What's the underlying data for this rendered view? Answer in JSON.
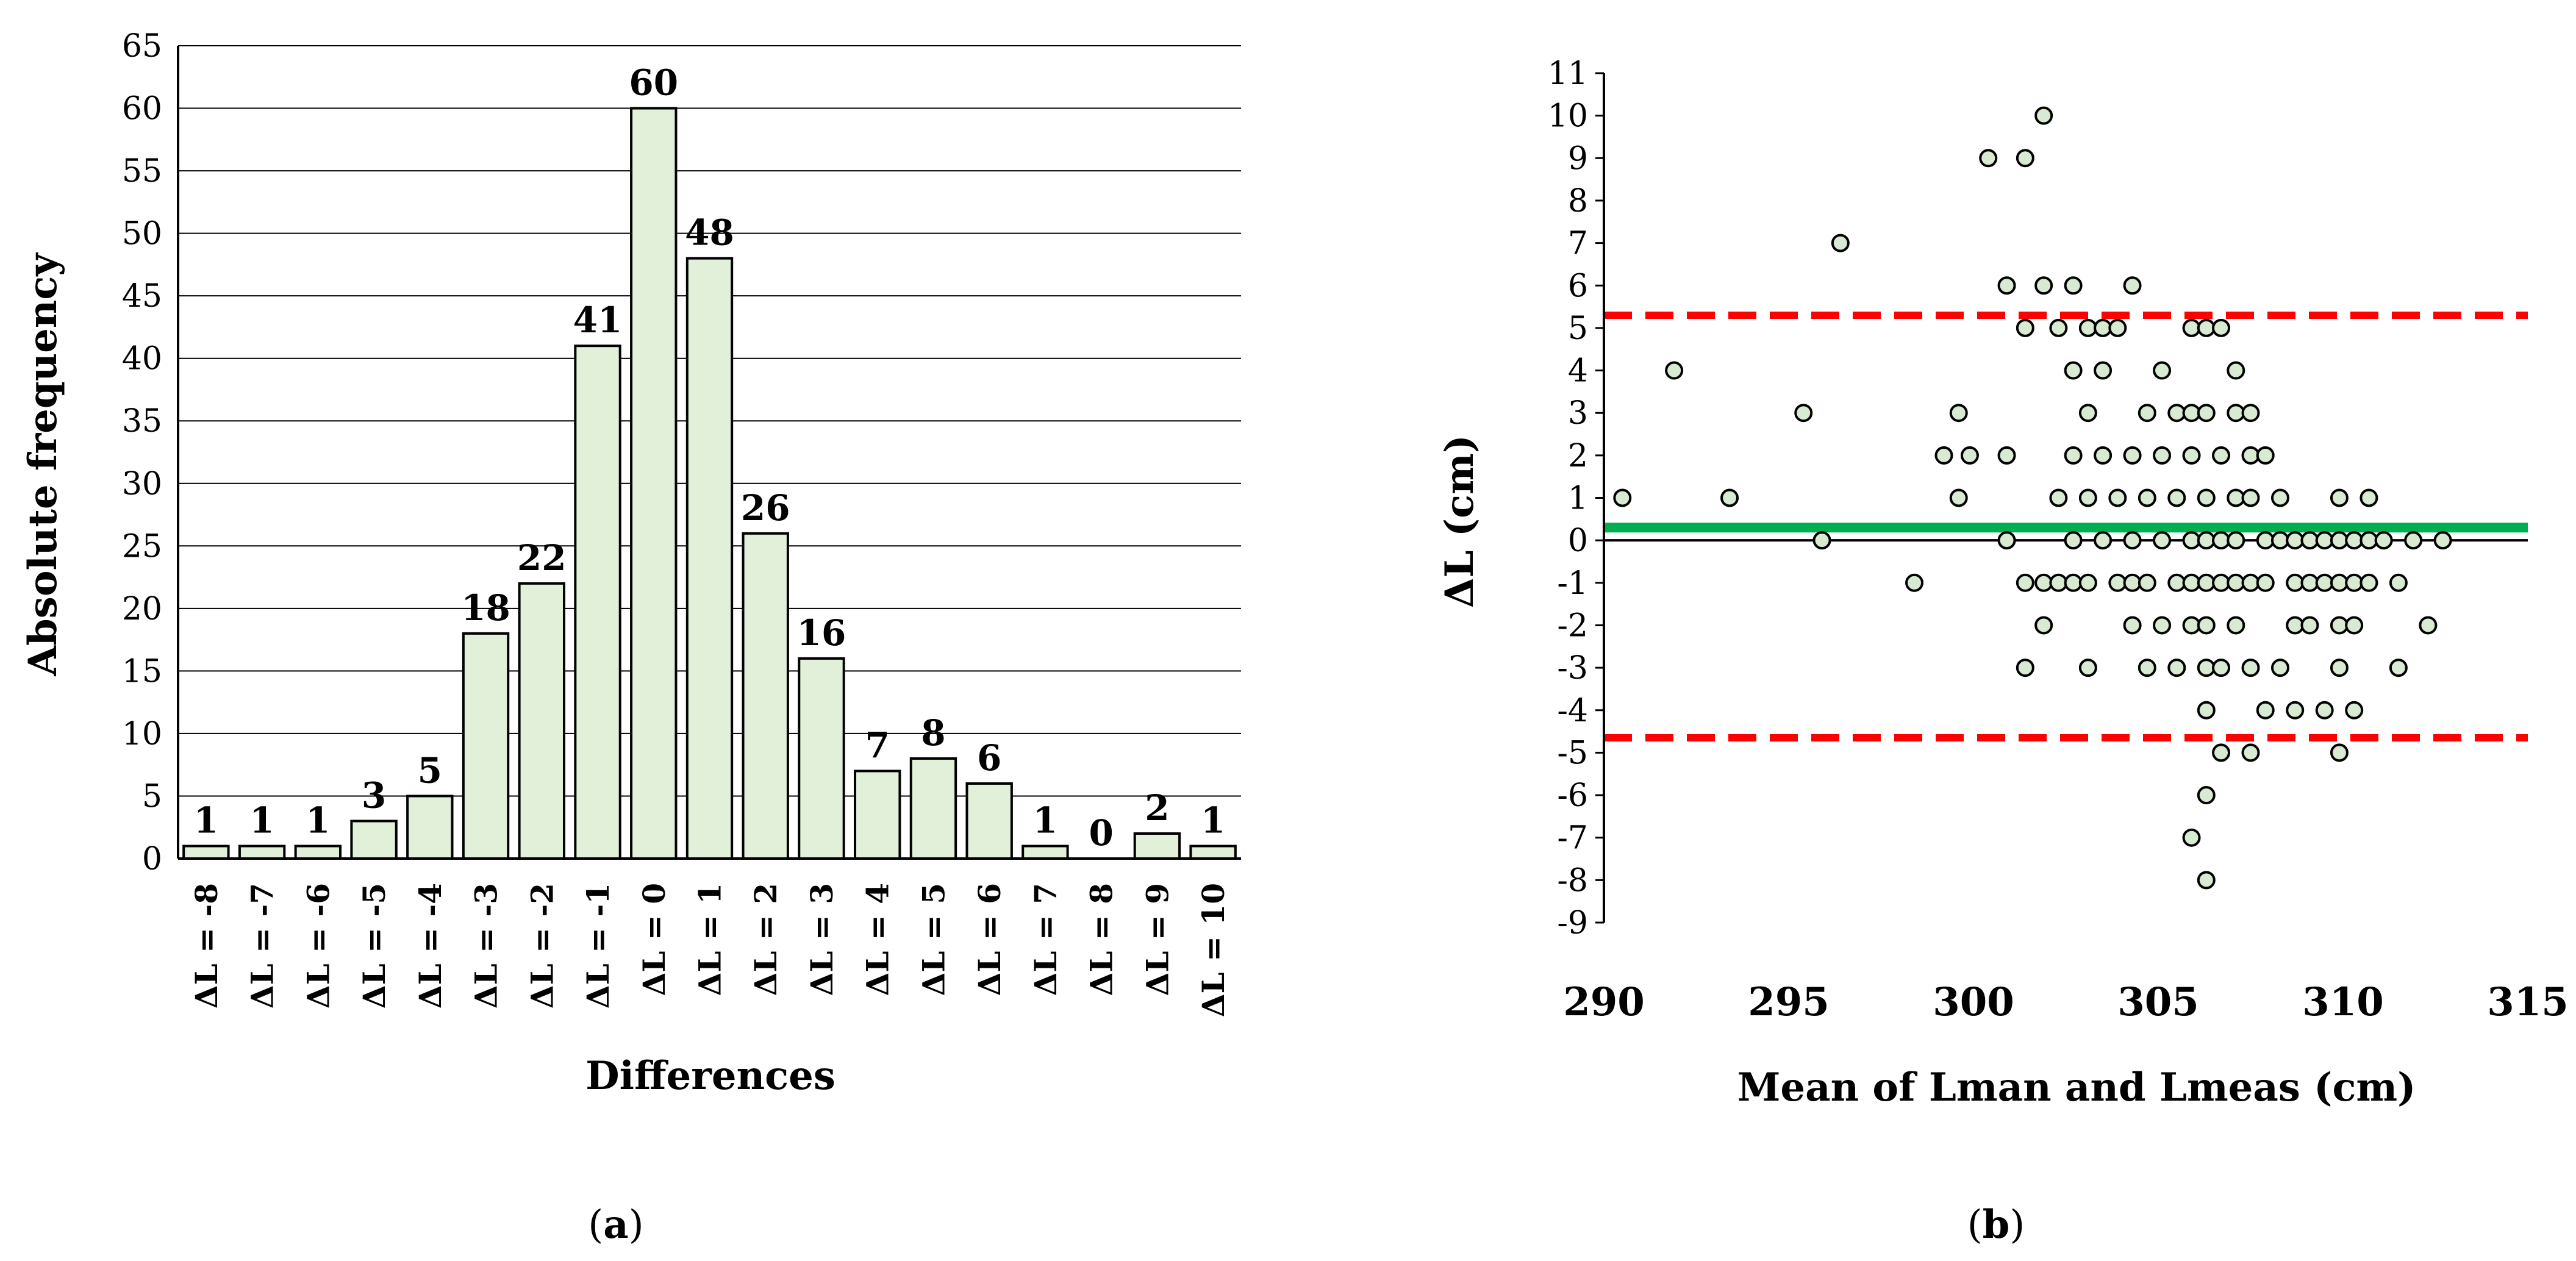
{
  "colors": {
    "bar_fill": "#e2efd9",
    "point_fill": "#d9ead3",
    "mean_line": "#00b050",
    "limit_line": "#ff0000",
    "grid": "#000000"
  },
  "chart_data": [
    {
      "type": "bar",
      "caption_letter": "a",
      "title": "",
      "xlabel": "Differences",
      "ylabel": "Absolute frequency",
      "ylim": [
        0,
        65
      ],
      "yticks": [
        "0",
        "5",
        "10",
        "15",
        "20",
        "25",
        "30",
        "35",
        "40",
        "45",
        "50",
        "55",
        "60",
        "65"
      ],
      "grid": true,
      "categories": [
        "ΔL = -8",
        "ΔL = -7",
        "ΔL = -6",
        "ΔL = -5",
        "ΔL = -4",
        "ΔL = -3",
        "ΔL = -2",
        "ΔL = -1",
        "ΔL = 0",
        "ΔL = 1",
        "ΔL = 2",
        "ΔL = 3",
        "ΔL = 4",
        "ΔL = 5",
        "ΔL = 6",
        "ΔL = 7",
        "ΔL = 8",
        "ΔL = 9",
        "ΔL = 10"
      ],
      "values": [
        1,
        1,
        1,
        3,
        5,
        18,
        22,
        41,
        60,
        48,
        26,
        16,
        7,
        8,
        6,
        1,
        0,
        2,
        1
      ]
    },
    {
      "type": "scatter",
      "caption_letter": "b",
      "title": "",
      "xlabel": "Mean of Lman and Lmeas (cm)",
      "ylabel": "ΔL  (cm)",
      "xlim": [
        290,
        315
      ],
      "ylim": [
        -9,
        11
      ],
      "xticks": [
        "290",
        "295",
        "300",
        "305",
        "310",
        "315"
      ],
      "yticks": [
        "11",
        "10",
        "9",
        "8",
        "7",
        "6",
        "5",
        "4",
        "3",
        "2",
        "1",
        "0",
        "-1",
        "-2",
        "-3",
        "-4",
        "-5",
        "-6",
        "-7",
        "-8",
        "-9"
      ],
      "mean_difference": 0.3,
      "upper_limit": 5.3,
      "lower_limit": -4.65,
      "points": [
        [
          290.5,
          1
        ],
        [
          291.9,
          4
        ],
        [
          293.4,
          1
        ],
        [
          295.4,
          3
        ],
        [
          295.9,
          0
        ],
        [
          296.4,
          7
        ],
        [
          298.4,
          -1
        ],
        [
          299.2,
          2
        ],
        [
          299.6,
          3
        ],
        [
          299.6,
          1
        ],
        [
          299.9,
          2
        ],
        [
          300.4,
          9
        ],
        [
          300.9,
          6
        ],
        [
          300.9,
          2
        ],
        [
          300.9,
          0
        ],
        [
          301.4,
          9
        ],
        [
          301.4,
          5
        ],
        [
          301.4,
          -1
        ],
        [
          301.4,
          -3
        ],
        [
          301.9,
          10
        ],
        [
          301.9,
          6
        ],
        [
          301.9,
          -1
        ],
        [
          301.9,
          -2
        ],
        [
          302.3,
          5
        ],
        [
          302.3,
          1
        ],
        [
          302.3,
          -1
        ],
        [
          302.7,
          6
        ],
        [
          302.7,
          4
        ],
        [
          302.7,
          2
        ],
        [
          302.7,
          0
        ],
        [
          302.7,
          -1
        ],
        [
          303.1,
          5
        ],
        [
          303.1,
          3
        ],
        [
          303.1,
          1
        ],
        [
          303.1,
          -1
        ],
        [
          303.1,
          -3
        ],
        [
          303.5,
          5
        ],
        [
          303.5,
          4
        ],
        [
          303.5,
          2
        ],
        [
          303.5,
          0
        ],
        [
          303.9,
          5
        ],
        [
          303.9,
          1
        ],
        [
          303.9,
          -1
        ],
        [
          304.3,
          6
        ],
        [
          304.3,
          2
        ],
        [
          304.3,
          0
        ],
        [
          304.3,
          -1
        ],
        [
          304.3,
          -2
        ],
        [
          304.7,
          3
        ],
        [
          304.7,
          1
        ],
        [
          304.7,
          -1
        ],
        [
          304.7,
          -3
        ],
        [
          305.1,
          4
        ],
        [
          305.1,
          2
        ],
        [
          305.1,
          0
        ],
        [
          305.1,
          -2
        ],
        [
          305.5,
          3
        ],
        [
          305.5,
          1
        ],
        [
          305.5,
          -1
        ],
        [
          305.5,
          -3
        ],
        [
          305.9,
          5
        ],
        [
          305.9,
          3
        ],
        [
          305.9,
          2
        ],
        [
          305.9,
          0
        ],
        [
          305.9,
          -1
        ],
        [
          305.9,
          -2
        ],
        [
          305.9,
          -7
        ],
        [
          306.3,
          5
        ],
        [
          306.3,
          3
        ],
        [
          306.3,
          1
        ],
        [
          306.3,
          0
        ],
        [
          306.3,
          -1
        ],
        [
          306.3,
          -2
        ],
        [
          306.3,
          -3
        ],
        [
          306.3,
          -4
        ],
        [
          306.3,
          -6
        ],
        [
          306.3,
          -8
        ],
        [
          306.7,
          5
        ],
        [
          306.7,
          2
        ],
        [
          306.7,
          0
        ],
        [
          306.7,
          -1
        ],
        [
          306.7,
          -3
        ],
        [
          306.7,
          -5
        ],
        [
          307.1,
          4
        ],
        [
          307.1,
          3
        ],
        [
          307.1,
          1
        ],
        [
          307.1,
          0
        ],
        [
          307.1,
          -1
        ],
        [
          307.1,
          -2
        ],
        [
          307.5,
          3
        ],
        [
          307.5,
          2
        ],
        [
          307.5,
          1
        ],
        [
          307.5,
          -1
        ],
        [
          307.5,
          -3
        ],
        [
          307.5,
          -5
        ],
        [
          307.9,
          2
        ],
        [
          307.9,
          0
        ],
        [
          307.9,
          -1
        ],
        [
          307.9,
          -4
        ],
        [
          308.3,
          1
        ],
        [
          308.3,
          0
        ],
        [
          308.3,
          -3
        ],
        [
          308.7,
          0
        ],
        [
          308.7,
          -1
        ],
        [
          308.7,
          -2
        ],
        [
          308.7,
          -4
        ],
        [
          309.1,
          0
        ],
        [
          309.1,
          -1
        ],
        [
          309.1,
          -2
        ],
        [
          309.5,
          0
        ],
        [
          309.5,
          -1
        ],
        [
          309.5,
          -4
        ],
        [
          309.9,
          1
        ],
        [
          309.9,
          0
        ],
        [
          309.9,
          -1
        ],
        [
          309.9,
          -2
        ],
        [
          309.9,
          -3
        ],
        [
          309.9,
          -5
        ],
        [
          310.3,
          0
        ],
        [
          310.3,
          -1
        ],
        [
          310.3,
          -2
        ],
        [
          310.3,
          -4
        ],
        [
          310.7,
          1
        ],
        [
          310.7,
          0
        ],
        [
          310.7,
          -1
        ],
        [
          311.1,
          0
        ],
        [
          311.5,
          -1
        ],
        [
          311.5,
          -3
        ],
        [
          311.9,
          0
        ],
        [
          312.3,
          -2
        ],
        [
          312.7,
          0
        ]
      ]
    }
  ]
}
